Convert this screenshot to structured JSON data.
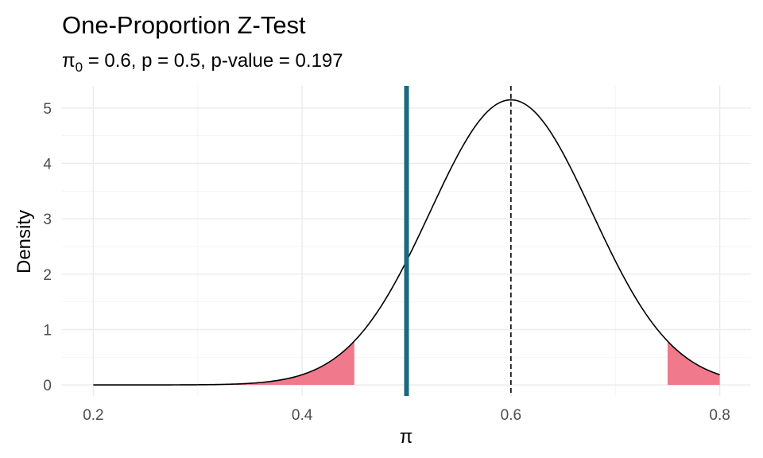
{
  "chart_data": {
    "type": "area",
    "title": "One-Proportion Z-Test",
    "subtitle": {
      "prefix": "π",
      "subscript": "0",
      "rest": " = 0.6, p = 0.5, p-value = 0.197"
    },
    "xlabel": "π",
    "ylabel": "Density",
    "xlim": [
      0.17,
      0.83
    ],
    "ylim": [
      -0.2,
      5.4
    ],
    "x_ticks": [
      0.2,
      0.4,
      0.6,
      0.8
    ],
    "x_tick_labels": [
      "0.2",
      "0.4",
      "0.6",
      "0.8"
    ],
    "y_ticks": [
      0,
      1,
      2,
      3,
      4,
      5
    ],
    "y_tick_labels": [
      "0",
      "1",
      "2",
      "3",
      "4",
      "5"
    ],
    "grid": true,
    "density_curve": {
      "distribution": "normal",
      "mean": 0.6,
      "sd": 0.0775,
      "x_range": [
        0.2,
        0.8
      ],
      "color": "#000000"
    },
    "shaded_regions": [
      {
        "from": 0.2,
        "to": 0.45,
        "color": "#f07a8c"
      },
      {
        "from": 0.75,
        "to": 0.8,
        "color": "#f07a8c"
      }
    ],
    "null_value_line": {
      "x": 0.6,
      "style": "dashed",
      "color": "#000000"
    },
    "observed_line": {
      "x": 0.5,
      "color": "#1b6a7d"
    }
  }
}
